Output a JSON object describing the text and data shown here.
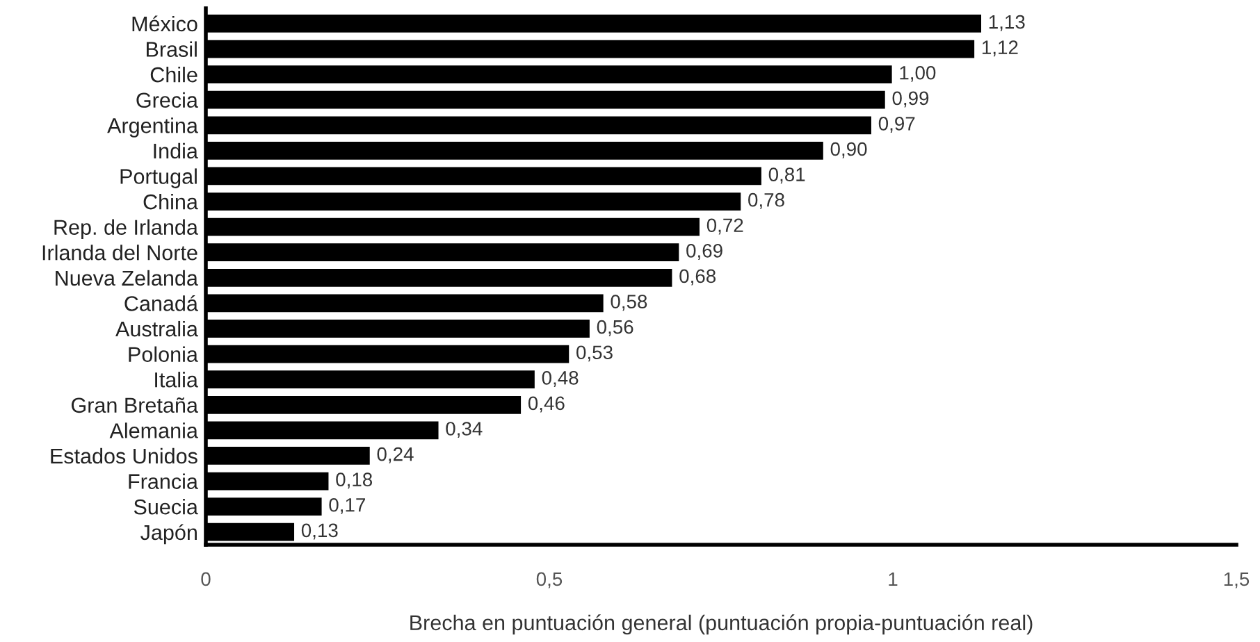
{
  "chart_data": {
    "type": "bar",
    "orientation": "horizontal",
    "xlabel": "Brecha en puntuación general (puntuación propia-puntuación real)",
    "categories": [
      "México",
      "Brasil",
      "Chile",
      "Grecia",
      "Argentina",
      "India",
      "Portugal",
      "China",
      "Rep. de Irlanda",
      "Irlanda del Norte",
      "Nueva Zelanda",
      "Canadá",
      "Australia",
      "Polonia",
      "Italia",
      "Gran Bretaña",
      "Alemania",
      "Estados Unidos",
      "Francia",
      "Suecia",
      "Japón"
    ],
    "values": [
      1.13,
      1.12,
      1.0,
      0.99,
      0.97,
      0.9,
      0.81,
      0.78,
      0.72,
      0.69,
      0.68,
      0.58,
      0.56,
      0.53,
      0.48,
      0.46,
      0.34,
      0.24,
      0.18,
      0.17,
      0.13
    ],
    "value_labels": [
      "1,13",
      "1,12",
      "1,00",
      "0,99",
      "0,97",
      "0,90",
      "0,81",
      "0,78",
      "0,72",
      "0,69",
      "0,68",
      "0,58",
      "0,56",
      "0,53",
      "0,48",
      "0,46",
      "0,34",
      "0,24",
      "0,18",
      "0,17",
      "0,13"
    ],
    "color": "#000000",
    "xlim": [
      0,
      1.5
    ],
    "xticks": [
      0,
      {
        "value": 0.5,
        "label": "0,5"
      },
      1,
      {
        "value": 1.5,
        "label": "1,5"
      }
    ],
    "grid": false
  }
}
